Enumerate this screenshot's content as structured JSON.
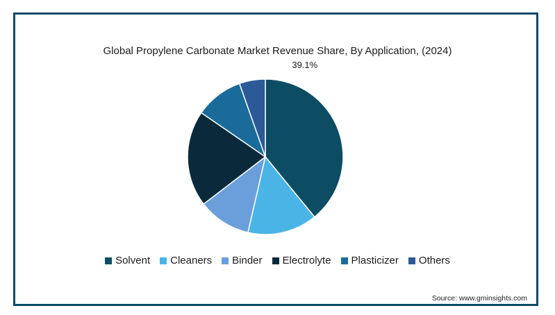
{
  "chart_data": {
    "type": "pie",
    "title": "Global Propylene Carbonate Market Revenue Share, By Application, (2024)",
    "slices": [
      {
        "name": "Solvent",
        "value": 39.1,
        "color": "#0d4d63",
        "label": "39.1%"
      },
      {
        "name": "Cleaners",
        "value": 14.5,
        "color": "#4ab4e6",
        "label": ""
      },
      {
        "name": "Binder",
        "value": 11.0,
        "color": "#6a9fdb",
        "label": ""
      },
      {
        "name": "Electrolyte",
        "value": 20.0,
        "color": "#0a2a3c",
        "label": ""
      },
      {
        "name": "Plasticizer",
        "value": 10.0,
        "color": "#1a6b99",
        "label": ""
      },
      {
        "name": "Others",
        "value": 5.4,
        "color": "#2b5a96",
        "label": ""
      }
    ],
    "legend_position": "bottom",
    "start_angle": "12 o'clock",
    "direction": "clockwise"
  },
  "source": "Source: www.gminsights.com"
}
